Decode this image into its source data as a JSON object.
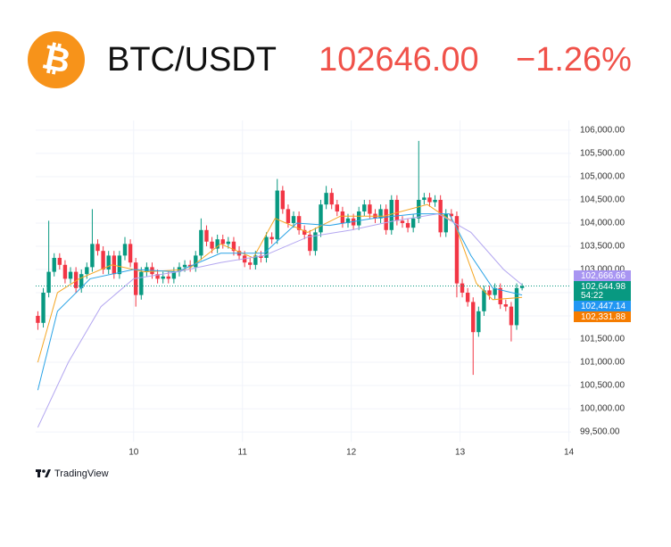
{
  "header": {
    "icon": "₿",
    "symbol": "BTC/USDT",
    "price": "102646.00",
    "change": "−1.26%"
  },
  "branding": "TradingView",
  "chart_data": {
    "type": "candlestick",
    "up_color": "#089981",
    "down_color": "#f23645",
    "grid": true,
    "xlim": [
      9.1,
      14.02
    ],
    "xticks": [
      10,
      11,
      12,
      13,
      14
    ],
    "ylim": [
      99290,
      106210
    ],
    "yticks": [
      {
        "value": 99500,
        "label": "99,500.00"
      },
      {
        "value": 100000,
        "label": "100,000.00"
      },
      {
        "value": 100500,
        "label": "100,500.00"
      },
      {
        "value": 101000,
        "label": "101,000.00"
      },
      {
        "value": 101500,
        "label": "101,500.00"
      },
      {
        "value": 102000,
        "label": "102,000.00"
      },
      {
        "value": 102500,
        "label": "102,500.00"
      },
      {
        "value": 103000,
        "label": "103,000.00"
      },
      {
        "value": 103500,
        "label": "103,500.00"
      },
      {
        "value": 104000,
        "label": "104,000.00"
      },
      {
        "value": 104500,
        "label": "104,500.00"
      },
      {
        "value": 105000,
        "label": "105,000.00"
      },
      {
        "value": 105500,
        "label": "105,500.00"
      },
      {
        "value": 106000,
        "label": "106,000.00"
      }
    ],
    "x": [
      9.12,
      9.17,
      9.22,
      9.27,
      9.32,
      9.37,
      9.42,
      9.47,
      9.52,
      9.57,
      9.62,
      9.67,
      9.72,
      9.77,
      9.82,
      9.87,
      9.92,
      9.97,
      10.02,
      10.07,
      10.12,
      10.17,
      10.22,
      10.27,
      10.32,
      10.37,
      10.42,
      10.47,
      10.52,
      10.57,
      10.62,
      10.67,
      10.72,
      10.77,
      10.82,
      10.87,
      10.92,
      10.97,
      11.02,
      11.07,
      11.12,
      11.17,
      11.22,
      11.27,
      11.32,
      11.37,
      11.42,
      11.47,
      11.52,
      11.57,
      11.62,
      11.67,
      11.72,
      11.77,
      11.82,
      11.87,
      11.92,
      11.97,
      12.02,
      12.07,
      12.12,
      12.17,
      12.22,
      12.27,
      12.32,
      12.37,
      12.42,
      12.47,
      12.52,
      12.57,
      12.62,
      12.67,
      12.72,
      12.77,
      12.82,
      12.87,
      12.92,
      12.97,
      13.02,
      13.07,
      13.12,
      13.17,
      13.22,
      13.27,
      13.32,
      13.37,
      13.42,
      13.47,
      13.52,
      13.57
    ],
    "open": [
      102000,
      101850,
      102500,
      102950,
      103250,
      103100,
      102800,
      102950,
      102600,
      102900,
      103050,
      103550,
      103400,
      103000,
      103300,
      102900,
      103300,
      103550,
      103150,
      102450,
      102950,
      103050,
      102900,
      102800,
      102850,
      102800,
      102950,
      103050,
      103100,
      103050,
      103300,
      103850,
      103600,
      103450,
      103650,
      103550,
      103600,
      103400,
      103300,
      103150,
      103100,
      103300,
      103250,
      103700,
      103650,
      104700,
      104300,
      104000,
      104150,
      103850,
      103750,
      103400,
      103800,
      104400,
      104650,
      104400,
      104250,
      104000,
      104100,
      103950,
      104250,
      104400,
      104200,
      104100,
      104300,
      103850,
      104500,
      104050,
      104000,
      103900,
      104100,
      104500,
      104550,
      104450,
      104500,
      103800,
      104200,
      104150,
      102700,
      102500,
      102300,
      101650,
      102100,
      102550,
      102450,
      102600,
      102250,
      102200,
      101800,
      102600
    ],
    "high": [
      102100,
      102600,
      104050,
      103350,
      103350,
      103200,
      103050,
      103050,
      103000,
      103150,
      104300,
      103650,
      103500,
      103400,
      103400,
      103400,
      103700,
      103650,
      103250,
      103050,
      103150,
      103150,
      103000,
      102950,
      102950,
      103050,
      103150,
      103200,
      103200,
      103400,
      104100,
      103950,
      103700,
      103750,
      103750,
      103700,
      103700,
      103500,
      103400,
      103250,
      103400,
      103400,
      103800,
      103800,
      104950,
      104800,
      104400,
      104250,
      104250,
      103950,
      103850,
      103900,
      104500,
      104800,
      104750,
      104500,
      104350,
      104200,
      104200,
      104350,
      104500,
      104500,
      104300,
      104400,
      104400,
      104600,
      104600,
      104150,
      104100,
      104200,
      105770,
      104650,
      104650,
      104600,
      104600,
      104300,
      104300,
      104250,
      102800,
      102600,
      102400,
      102200,
      102650,
      102650,
      102700,
      102700,
      102350,
      102300,
      102700,
      102700
    ],
    "low": [
      101700,
      101750,
      102400,
      102850,
      103000,
      102700,
      102700,
      102500,
      102500,
      102800,
      102950,
      103300,
      102900,
      102900,
      102800,
      102800,
      103200,
      103050,
      102200,
      102350,
      102850,
      102800,
      102700,
      102700,
      102700,
      102700,
      102850,
      102950,
      102950,
      102950,
      103200,
      103500,
      103350,
      103350,
      103450,
      103450,
      103300,
      103200,
      103050,
      103000,
      103000,
      103150,
      103150,
      103550,
      103550,
      104200,
      103900,
      103900,
      103750,
      103650,
      103300,
      103300,
      103700,
      104300,
      104300,
      104150,
      103900,
      103900,
      103850,
      103850,
      104150,
      104100,
      104000,
      104000,
      103750,
      103750,
      103950,
      103900,
      103800,
      103800,
      104000,
      104400,
      104350,
      104350,
      103700,
      103700,
      104050,
      102400,
      102400,
      102200,
      100730,
      101550,
      102000,
      102350,
      102350,
      102150,
      102100,
      101450,
      101700,
      102550
    ],
    "close": [
      101850,
      102500,
      102950,
      103250,
      103100,
      102800,
      102950,
      102600,
      102900,
      103050,
      103550,
      103400,
      103000,
      103300,
      102900,
      103300,
      103550,
      103150,
      102450,
      102950,
      103050,
      102900,
      102800,
      102850,
      102800,
      102950,
      103050,
      103100,
      103050,
      103300,
      103850,
      103600,
      103450,
      103650,
      103550,
      103600,
      103400,
      103300,
      103150,
      103100,
      103300,
      103250,
      103700,
      103650,
      104700,
      104300,
      104000,
      104150,
      103850,
      103750,
      103400,
      103800,
      104400,
      104650,
      104400,
      104250,
      104000,
      104100,
      103950,
      104250,
      104400,
      104200,
      104100,
      104300,
      103850,
      104500,
      104050,
      104000,
      103900,
      104100,
      104500,
      104550,
      104450,
      104500,
      103800,
      104200,
      104150,
      102700,
      102500,
      102300,
      101650,
      102100,
      102550,
      102450,
      102600,
      102250,
      102200,
      101800,
      102600,
      102645
    ],
    "series": [
      {
        "color": "#f5a623",
        "x": [
          9.12,
          9.3,
          9.5,
          9.8,
          10.1,
          10.5,
          10.8,
          11.1,
          11.3,
          11.6,
          11.9,
          12.3,
          12.7,
          12.95,
          13.15,
          13.3,
          13.57
        ],
        "values": [
          101000,
          102500,
          102800,
          103100,
          102950,
          103000,
          103550,
          103250,
          104100,
          103800,
          104150,
          104150,
          104400,
          104000,
          102700,
          102350,
          102400
        ]
      },
      {
        "color": "#2aa3e6",
        "x": [
          9.12,
          9.3,
          9.6,
          10,
          10.4,
          10.8,
          11.2,
          11.5,
          11.8,
          12.2,
          12.6,
          12.9,
          13.1,
          13.3,
          13.57
        ],
        "values": [
          100400,
          102100,
          102800,
          103000,
          102950,
          103350,
          103350,
          104000,
          103950,
          104100,
          104200,
          104200,
          103300,
          102600,
          102450
        ]
      },
      {
        "color": "#b3a6f0",
        "x": [
          9.12,
          9.4,
          9.7,
          10,
          10.4,
          10.8,
          11.2,
          11.6,
          12,
          12.4,
          12.8,
          13.1,
          13.4,
          13.57
        ],
        "values": [
          99600,
          101000,
          102200,
          102800,
          102950,
          103150,
          103300,
          103700,
          103850,
          104050,
          104200,
          103800,
          103000,
          102670
        ]
      }
    ],
    "price_tags": [
      {
        "value": 102666.66,
        "label": "102,666.66",
        "color": "#a895f2"
      },
      {
        "value": 102644.98,
        "label": "102,644.98",
        "countdown": "54:22",
        "color": "#089981"
      },
      {
        "value": 102447.14,
        "label": "102,447.14",
        "color": "#2196f3"
      },
      {
        "value": 102331.88,
        "label": "102,331.88",
        "color": "#f57c00"
      }
    ]
  }
}
